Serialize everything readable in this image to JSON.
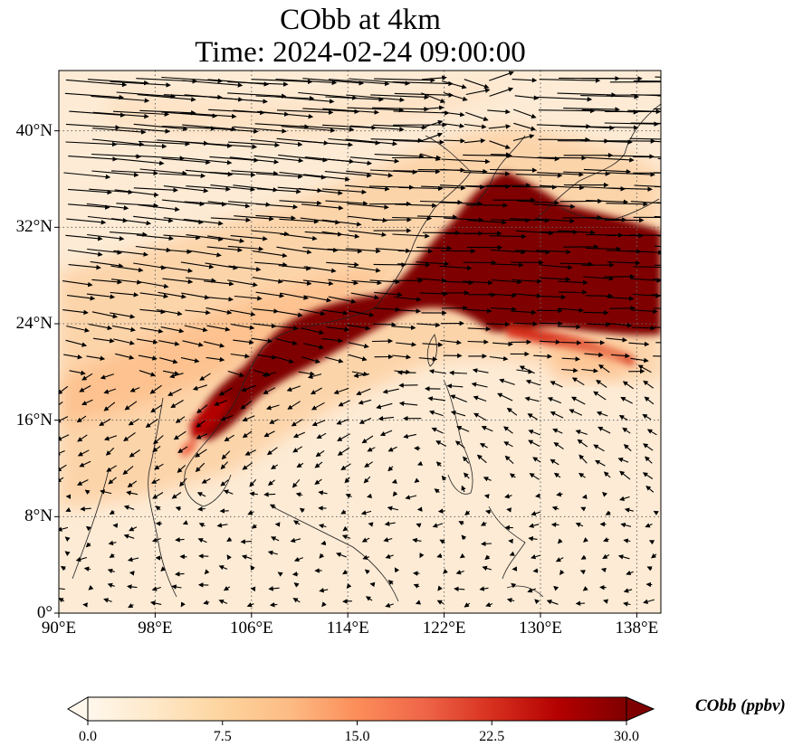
{
  "title": {
    "line1": "CObb at 4km",
    "line2": "Time: 2024-02-24 09:00:00"
  },
  "map": {
    "projection": "PlateCarree",
    "lon_range": [
      90,
      140
    ],
    "lat_range": [
      0,
      45
    ],
    "gridlines": "dotted",
    "lon_ticks": [
      {
        "value": 90,
        "label": "90°E"
      },
      {
        "value": 98,
        "label": "98°E"
      },
      {
        "value": 106,
        "label": "106°E"
      },
      {
        "value": 114,
        "label": "114°E"
      },
      {
        "value": 122,
        "label": "122°E"
      },
      {
        "value": 130,
        "label": "130°E"
      },
      {
        "value": 138,
        "label": "138°E"
      }
    ],
    "lat_ticks": [
      {
        "value": 0,
        "label": "0°"
      },
      {
        "value": 8,
        "label": "8°N"
      },
      {
        "value": 16,
        "label": "16°N"
      },
      {
        "value": 24,
        "label": "24°N"
      },
      {
        "value": 32,
        "label": "32°N"
      },
      {
        "value": 40,
        "label": "40°N"
      }
    ],
    "field": "CObb concentration (ppbv), plume max over eastern China / East China Sea, band extending to Indochina",
    "vectors": "wind arrows (black)"
  },
  "colorbar": {
    "title": "CObb (ppbv)",
    "min": 0.0,
    "max": 30.0,
    "extend": "both",
    "colormap": "OrRd",
    "ticks": [
      "0.0",
      "7.5",
      "15.0",
      "22.5",
      "30.0"
    ],
    "stops": [
      "#fff7ec",
      "#fee8c8",
      "#fdd49e",
      "#fdbb84",
      "#fc8d59",
      "#ef6548",
      "#d7301f",
      "#b30000",
      "#7f0000"
    ]
  }
}
